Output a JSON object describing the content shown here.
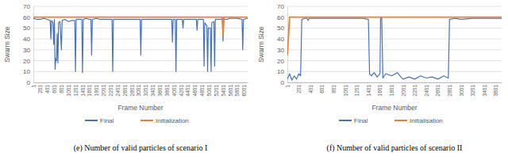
{
  "chart_data": [
    {
      "type": "line",
      "title": "(e) Number of valid particles of scenario I",
      "x_label": "Frame Number",
      "y_label": "Swarm Size",
      "x": [
        1,
        100,
        200,
        300,
        400,
        480,
        500,
        520,
        560,
        580,
        600,
        620,
        640,
        660,
        680,
        700,
        720,
        760,
        800,
        820,
        900,
        1000,
        1100,
        1180,
        1200,
        1220,
        1300,
        1380,
        1400,
        1420,
        1500,
        1600,
        1640,
        1660,
        1680,
        1800,
        1900,
        2000,
        2100,
        2200,
        2240,
        2260,
        2280,
        2400,
        2600,
        2800,
        3000,
        3040,
        3060,
        3080,
        3200,
        3400,
        3600,
        3800,
        3940,
        3960,
        3980,
        4040,
        4060,
        4080,
        4200,
        4240,
        4260,
        4280,
        4400,
        4600,
        4640,
        4660,
        4680,
        4800,
        4840,
        4860,
        4880,
        4940,
        4960,
        4980,
        5040,
        5060,
        5080,
        5140,
        5160,
        5180,
        5300,
        5380,
        5400,
        5420,
        5500,
        5600,
        5800,
        5940,
        5960,
        5980,
        6100
      ],
      "series": [
        {
          "name": "Final",
          "color": "#4472c4",
          "values": [
            59,
            58,
            58,
            59,
            58,
            57,
            40,
            57,
            55,
            35,
            58,
            12,
            22,
            20,
            45,
            18,
            55,
            56,
            30,
            57,
            58,
            56,
            57,
            57,
            10,
            58,
            58,
            58,
            9,
            58,
            59,
            58,
            58,
            25,
            58,
            59,
            58,
            58,
            58,
            58,
            58,
            10,
            58,
            58,
            58,
            58,
            58,
            58,
            25,
            58,
            58,
            58,
            58,
            58,
            58,
            37,
            58,
            58,
            10,
            58,
            58,
            58,
            50,
            58,
            58,
            58,
            58,
            48,
            58,
            58,
            58,
            15,
            55,
            52,
            10,
            50,
            50,
            10,
            55,
            56,
            15,
            58,
            58,
            58,
            38,
            58,
            58,
            59,
            59,
            58,
            30,
            58,
            59
          ]
        },
        {
          "name": "Initialization",
          "color": "#ed7d31",
          "values": [
            60,
            60,
            60,
            60,
            60,
            60,
            60,
            60,
            60,
            60,
            60,
            60,
            60,
            60,
            60,
            60,
            60,
            60,
            60,
            60,
            60,
            60,
            60,
            60,
            60,
            60,
            60,
            60,
            60,
            60,
            60,
            60,
            60,
            60,
            60,
            60,
            60,
            60,
            60,
            60,
            60,
            60,
            60,
            60,
            60,
            60,
            60,
            60,
            60,
            60,
            60,
            60,
            60,
            60,
            60,
            60,
            60,
            60,
            60,
            60,
            60,
            60,
            60,
            60,
            60,
            60,
            60,
            60,
            60,
            60,
            60,
            60,
            60,
            60,
            60,
            60,
            60,
            60,
            60,
            60,
            60,
            60,
            60,
            60,
            43,
            60,
            60,
            60,
            60,
            60,
            60,
            60,
            60
          ]
        }
      ],
      "xlim": [
        1,
        6100
      ],
      "xticks": [
        1,
        201,
        401,
        601,
        801,
        1001,
        1201,
        1401,
        1601,
        1801,
        2001,
        2201,
        2401,
        2601,
        2801,
        3001,
        3201,
        3401,
        3601,
        3801,
        4001,
        4201,
        4401,
        4601,
        4801,
        5001,
        5201,
        5401,
        5601,
        5801,
        6001
      ],
      "ylim": [
        0,
        70
      ],
      "yticks": [
        0,
        10,
        20,
        30,
        40,
        50,
        60,
        70
      ],
      "grid": true,
      "legend": "bottom"
    },
    {
      "type": "line",
      "title": "(f) Number of valid particles of scenario II",
      "x_label": "Frame Number",
      "y_label": "Swarm Size",
      "x": [
        1,
        40,
        80,
        120,
        160,
        200,
        230,
        250,
        300,
        340,
        360,
        380,
        500,
        700,
        900,
        1100,
        1300,
        1400,
        1420,
        1450,
        1500,
        1550,
        1600,
        1610,
        1620,
        1630,
        1650,
        1700,
        1800,
        1900,
        1960,
        2000,
        2100,
        2200,
        2300,
        2400,
        2500,
        2600,
        2700,
        2780,
        2800,
        2900,
        3000,
        3200,
        3400,
        3600,
        3700
      ],
      "series": [
        {
          "name": "Final",
          "color": "#4472c4",
          "values": [
            3,
            8,
            2,
            6,
            3,
            8,
            6,
            58,
            59,
            59,
            57,
            59,
            59,
            59,
            59,
            59,
            59,
            58,
            8,
            6,
            9,
            5,
            8,
            59,
            59,
            60,
            4,
            8,
            6,
            9,
            5,
            3,
            5,
            3,
            6,
            4,
            5,
            3,
            6,
            4,
            58,
            59,
            58,
            59,
            59,
            59,
            59
          ]
        },
        {
          "name": "Initialisation",
          "color": "#ed7d31",
          "values": [
            25,
            60,
            60,
            60,
            60,
            60,
            60,
            60,
            60,
            60,
            60,
            60,
            60,
            60,
            60,
            60,
            60,
            60,
            60,
            60,
            60,
            60,
            60,
            60,
            60,
            60,
            60,
            60,
            60,
            60,
            60,
            60,
            60,
            60,
            60,
            60,
            60,
            60,
            60,
            60,
            60,
            60,
            60,
            60,
            60,
            60,
            60
          ]
        }
      ],
      "xlim": [
        1,
        3700
      ],
      "xticks": [
        1,
        201,
        401,
        601,
        801,
        1001,
        1201,
        1401,
        1601,
        1801,
        2001,
        2201,
        2401,
        2601,
        2801,
        3001,
        3201,
        3401,
        3601
      ],
      "ylim": [
        0,
        70
      ],
      "yticks": [
        0,
        10,
        20,
        30,
        40,
        50,
        60,
        70
      ],
      "grid": true,
      "legend": "bottom"
    }
  ]
}
